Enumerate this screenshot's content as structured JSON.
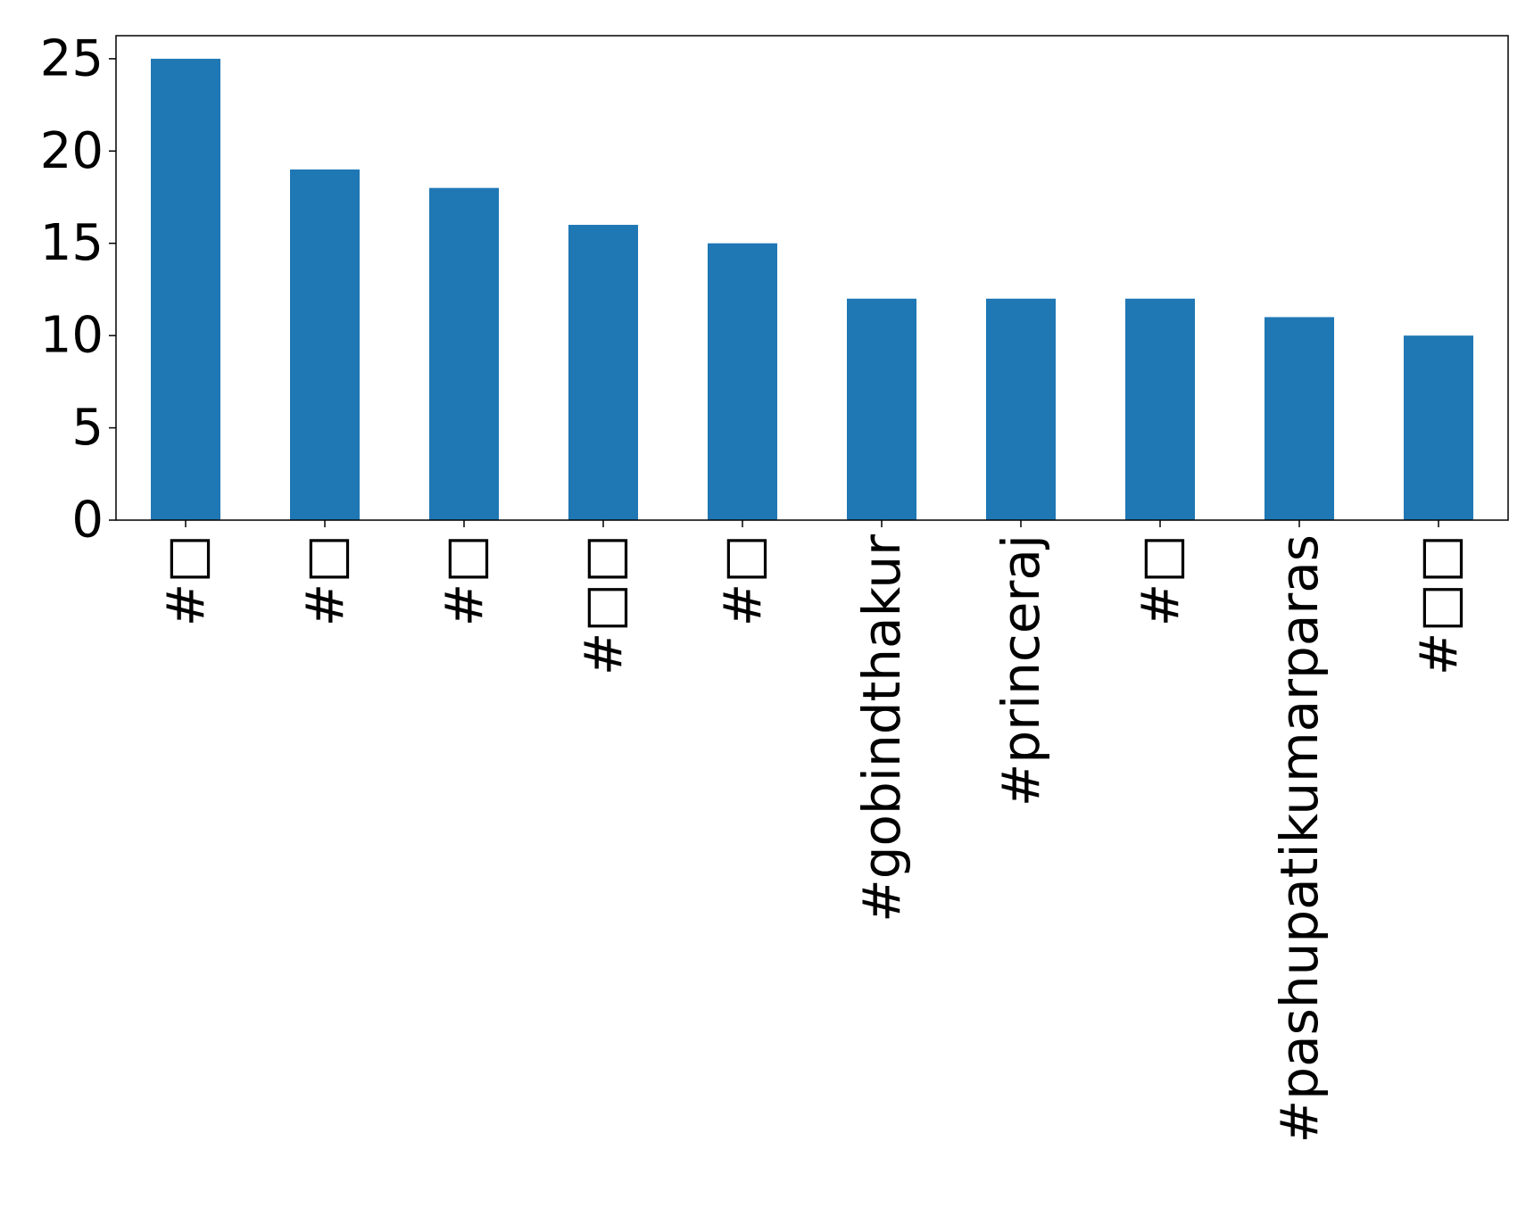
{
  "chart_data": {
    "type": "bar",
    "title": "",
    "xlabel": "",
    "ylabel": "",
    "categories": [
      "#□",
      "#□",
      "#□",
      "#□□",
      "#□",
      "#gobindthakur",
      "#princeraj",
      "#□",
      "#pashupatikumarparas",
      "#□□"
    ],
    "values": [
      25,
      19,
      18,
      16,
      15,
      12,
      12,
      12,
      11,
      10
    ],
    "ylim": [
      0,
      26.25
    ],
    "yticks": [
      0,
      5,
      10,
      15,
      20,
      25
    ],
    "grid": false,
    "legend": "none",
    "bar_color": "#1f77b4"
  }
}
